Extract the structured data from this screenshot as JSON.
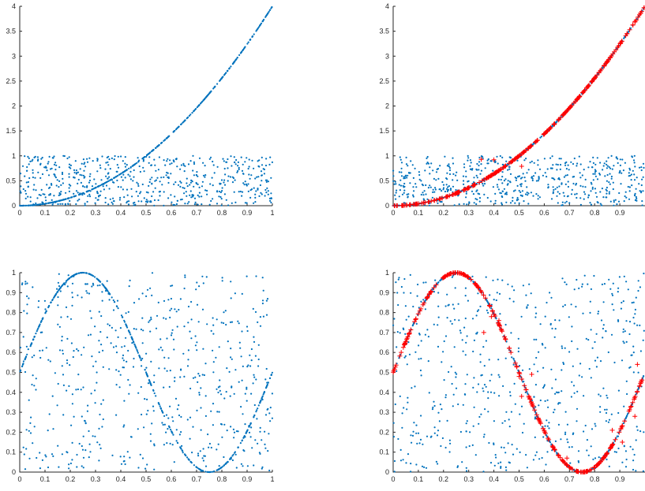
{
  "colors": {
    "scatter_blue": "#0072BD",
    "highlight_red": "#FF0000",
    "axis": "#262626"
  },
  "chart_data": [
    {
      "type": "scatter",
      "name": "top-left",
      "xlim": [
        0,
        1
      ],
      "ylim": [
        0,
        4
      ],
      "xticks": [
        "0",
        "0.1",
        "0.2",
        "0.3",
        "0.4",
        "0.5",
        "0.6",
        "0.7",
        "0.8",
        "0.9",
        "1"
      ],
      "yticks": [
        "0",
        "0.5",
        "1",
        "1.5",
        "2",
        "2.5",
        "3",
        "3.5",
        "4"
      ],
      "series": [
        {
          "marker": "dot",
          "color": "#0072BD",
          "curve": "y = 4*x^2",
          "x_range": [
            0,
            1
          ],
          "n_points": 400
        },
        {
          "marker": "dot",
          "color": "#0072BD",
          "distribution": "uniform",
          "x_range": [
            0,
            1
          ],
          "y_range": [
            0,
            1
          ],
          "n_points": 600
        }
      ]
    },
    {
      "type": "scatter",
      "name": "top-right",
      "xlim": [
        0,
        1
      ],
      "ylim": [
        0,
        4
      ],
      "xticks": [
        "0",
        "0.1",
        "0.2",
        "0.3",
        "0.4",
        "0.5",
        "0.6",
        "0.7",
        "0.8",
        "0.9"
      ],
      "yticks": [
        "0",
        "0.5",
        "1",
        "1.5",
        "2",
        "2.5",
        "3",
        "3.5",
        "4"
      ],
      "series": [
        {
          "marker": "dot",
          "color": "#0072BD",
          "curve": "y = 4*x^2",
          "x_range": [
            0,
            1
          ],
          "n_points": 400
        },
        {
          "marker": "dot",
          "color": "#0072BD",
          "distribution": "uniform",
          "x_range": [
            0,
            1
          ],
          "y_range": [
            0,
            1
          ],
          "n_points": 600
        },
        {
          "marker": "plus",
          "color": "#FF0000",
          "curve": "y = 4*x^2",
          "x_range": [
            0,
            1
          ],
          "n_points": 260
        },
        {
          "marker": "plus",
          "color": "#FF0000",
          "points": [
            [
              0.35,
              0.93
            ],
            [
              0.4,
              0.92
            ],
            [
              0.51,
              0.79
            ]
          ]
        }
      ]
    },
    {
      "type": "scatter",
      "name": "bottom-left",
      "xlim": [
        0,
        1
      ],
      "ylim": [
        0,
        1
      ],
      "xticks": [
        "0",
        "0.1",
        "0.2",
        "0.3",
        "0.4",
        "0.5",
        "0.6",
        "0.7",
        "0.8",
        "0.9",
        "1"
      ],
      "yticks": [
        "0",
        "0.1",
        "0.2",
        "0.3",
        "0.4",
        "0.5",
        "0.6",
        "0.7",
        "0.8",
        "0.9",
        "1"
      ],
      "series": [
        {
          "marker": "dot",
          "color": "#0072BD",
          "curve": "y = 0.5 + 0.5*sin(2*pi*x)",
          "x_range": [
            0,
            1
          ],
          "n_points": 400
        },
        {
          "marker": "dot",
          "color": "#0072BD",
          "distribution": "uniform",
          "x_range": [
            0,
            1
          ],
          "y_range": [
            0,
            1
          ],
          "n_points": 600
        }
      ]
    },
    {
      "type": "scatter",
      "name": "bottom-right",
      "xlim": [
        0,
        1
      ],
      "ylim": [
        0,
        1
      ],
      "xticks": [
        "0",
        "0.1",
        "0.2",
        "0.3",
        "0.4",
        "0.5",
        "0.6",
        "0.7",
        "0.8",
        "0.9"
      ],
      "yticks": [
        "0",
        "0.1",
        "0.2",
        "0.3",
        "0.4",
        "0.5",
        "0.6",
        "0.7",
        "0.8",
        "0.9",
        "1"
      ],
      "series": [
        {
          "marker": "dot",
          "color": "#0072BD",
          "curve": "y = 0.5 + 0.5*sin(2*pi*x)",
          "x_range": [
            0,
            1
          ],
          "n_points": 400
        },
        {
          "marker": "dot",
          "color": "#0072BD",
          "distribution": "uniform",
          "x_range": [
            0,
            1
          ],
          "y_range": [
            0,
            1
          ],
          "n_points": 600
        },
        {
          "marker": "plus",
          "color": "#FF0000",
          "curve": "y = 0.5 + 0.5*sin(2*pi*x)",
          "x_range": [
            0,
            1
          ],
          "n_points": 260
        },
        {
          "marker": "plus",
          "color": "#FF0000",
          "points": [
            [
              0.36,
              0.7
            ],
            [
              0.39,
              0.78
            ],
            [
              0.42,
              0.76
            ],
            [
              0.5,
              0.48
            ],
            [
              0.51,
              0.38
            ],
            [
              0.55,
              0.49
            ],
            [
              0.69,
              0.07
            ],
            [
              0.87,
              0.21
            ],
            [
              0.91,
              0.15
            ],
            [
              0.97,
              0.54
            ],
            [
              0.96,
              0.28
            ]
          ]
        }
      ]
    }
  ]
}
